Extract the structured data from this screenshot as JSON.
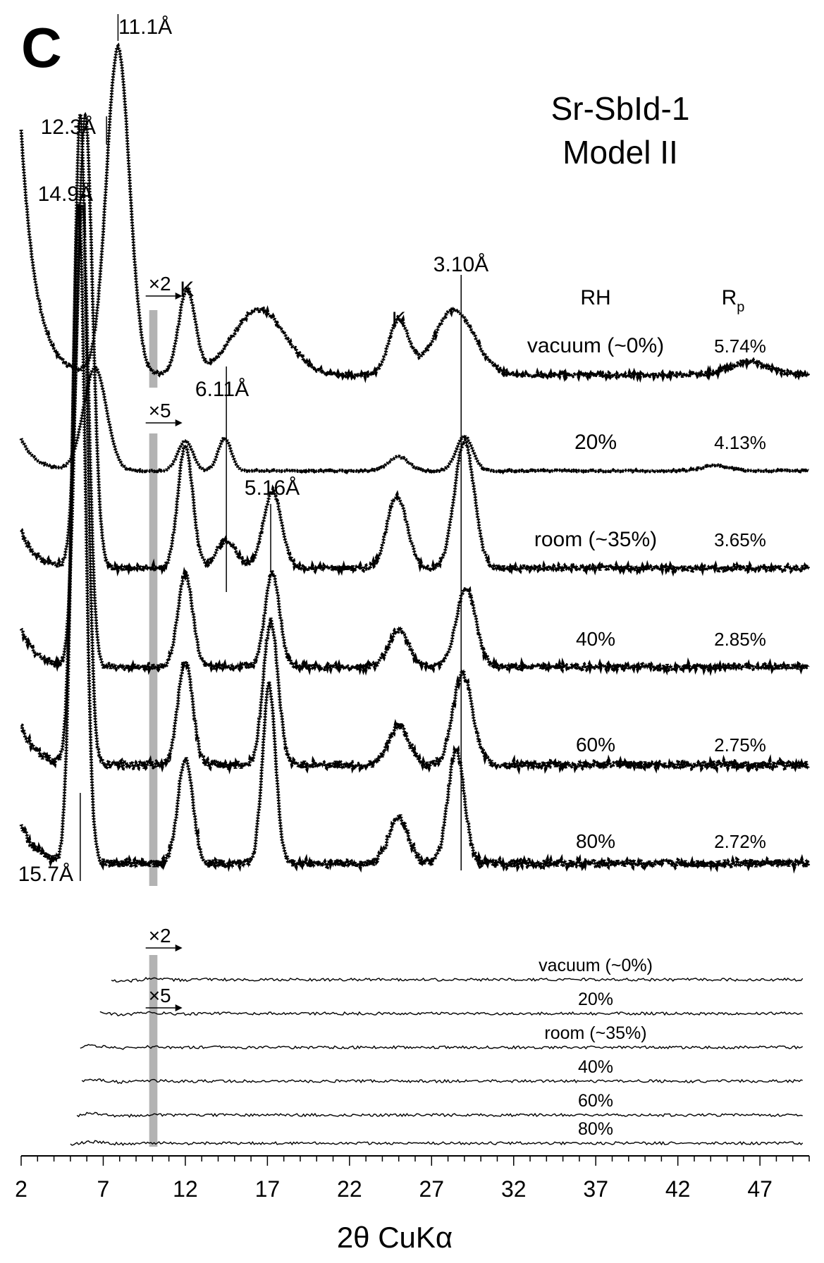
{
  "panel_letter": "C",
  "sample_title": "Sr-SbId-1",
  "model_title": "Model II",
  "colors": {
    "ink": "#000000",
    "gap_bar": "#b3b3b3",
    "background": "#ffffff"
  },
  "chart_data": {
    "type": "line",
    "xlabel": "2θ CuKα",
    "ylabel": "",
    "xlim": [
      2,
      50
    ],
    "xticks": [
      2,
      7,
      12,
      17,
      22,
      27,
      32,
      37,
      42,
      47
    ],
    "grid": false,
    "y_scale": "normalized intensity (offset per trace)",
    "gap_region_2theta": [
      9.8,
      10.3
    ],
    "column_headers": {
      "rh": "RH",
      "rp_main": "R",
      "rp_sub": "p"
    },
    "scale_markers": [
      {
        "label": "×2",
        "applies_to": "vacuum (~0%)",
        "start_2theta": 9.8
      },
      {
        "label": "×5",
        "applies_to": "20%",
        "start_2theta": 9.8
      }
    ],
    "peak_labels": [
      {
        "text": "11.1Å",
        "two_theta": 7.9
      },
      {
        "text": "12.3Å",
        "two_theta": 7.2
      },
      {
        "text": "14.9Å",
        "two_theta": 5.9
      },
      {
        "text": "15.7Å",
        "two_theta": 5.6
      },
      {
        "text": "6.11Å",
        "two_theta": 14.5
      },
      {
        "text": "5.16Å",
        "two_theta": 17.2
      },
      {
        "text": "3.10Å",
        "two_theta": 28.8
      }
    ],
    "phase_labels": [
      {
        "text": "K",
        "two_theta": 12.1
      },
      {
        "text": "K",
        "two_theta": 25.0
      }
    ],
    "series": [
      {
        "name": "vacuum (~0%)",
        "rp": "5.74%",
        "rh": "vacuum (~0%)",
        "peaks": [
          [
            7.9,
            1.0,
            0.7
          ],
          [
            12.1,
            0.26,
            0.5
          ],
          [
            16.5,
            0.2,
            1.6
          ],
          [
            25.0,
            0.17,
            0.6
          ],
          [
            28.4,
            0.2,
            1.2
          ],
          [
            46.4,
            0.04,
            1.2
          ]
        ],
        "low_angle_start": 2.0,
        "low_angle_amp": 0.75
      },
      {
        "name": "20%",
        "rp": "4.13%",
        "rh": "20%",
        "peaks": [
          [
            6.5,
            0.95,
            0.7
          ],
          [
            12.0,
            0.28,
            0.45
          ],
          [
            14.4,
            0.3,
            0.4
          ],
          [
            25.0,
            0.13,
            0.6
          ],
          [
            29.0,
            0.32,
            0.5
          ],
          [
            44.3,
            0.05,
            0.8
          ]
        ],
        "low_angle_start": 2.0,
        "low_angle_amp": 0.3
      },
      {
        "name": "room (~35%)",
        "rp": "3.65%",
        "rh": "room (~35%)",
        "peaks": [
          [
            5.9,
            1.0,
            0.45
          ],
          [
            12.0,
            0.27,
            0.45
          ],
          [
            14.5,
            0.06,
            0.6
          ],
          [
            17.3,
            0.17,
            0.55
          ],
          [
            24.9,
            0.16,
            0.6
          ],
          [
            29.0,
            0.28,
            0.6
          ]
        ],
        "low_angle_start": 2.0,
        "low_angle_amp": 0.08
      },
      {
        "name": "40%",
        "rp": "2.85%",
        "rh": "40%",
        "peaks": [
          [
            5.7,
            1.0,
            0.4
          ],
          [
            12.0,
            0.2,
            0.45
          ],
          [
            17.3,
            0.2,
            0.45
          ],
          [
            25.0,
            0.08,
            0.6
          ],
          [
            29.1,
            0.17,
            0.6
          ]
        ],
        "low_angle_start": 2.0,
        "low_angle_amp": 0.08
      },
      {
        "name": "60%",
        "rp": "2.75%",
        "rh": "60%",
        "peaks": [
          [
            5.6,
            1.0,
            0.4
          ],
          [
            12.0,
            0.16,
            0.45
          ],
          [
            17.2,
            0.22,
            0.45
          ],
          [
            25.0,
            0.06,
            0.6
          ],
          [
            28.9,
            0.14,
            0.6
          ]
        ],
        "low_angle_start": 2.0,
        "low_angle_amp": 0.06
      },
      {
        "name": "80%",
        "rp": "2.72%",
        "rh": "80%",
        "peaks": [
          [
            5.5,
            1.0,
            0.4
          ],
          [
            12.0,
            0.16,
            0.45
          ],
          [
            17.1,
            0.27,
            0.4
          ],
          [
            25.0,
            0.07,
            0.6
          ],
          [
            28.5,
            0.17,
            0.5
          ]
        ],
        "low_angle_start": 2.0,
        "low_angle_amp": 0.06
      }
    ],
    "difference_series": [
      {
        "name": "vacuum (~0%)",
        "start_2theta": 7.5
      },
      {
        "name": "20%",
        "start_2theta": 6.8
      },
      {
        "name": "room (~35%)",
        "start_2theta": 5.6
      },
      {
        "name": "40%",
        "start_2theta": 5.7
      },
      {
        "name": "60%",
        "start_2theta": 5.4
      },
      {
        "name": "80%",
        "start_2theta": 5.0
      }
    ]
  }
}
